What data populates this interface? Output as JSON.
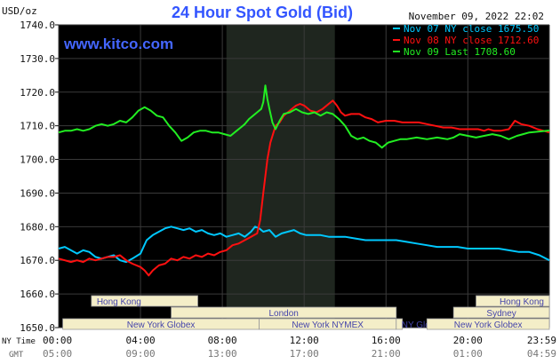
{
  "chart_data": {
    "type": "line",
    "title": "24 Hour Spot Gold (Bid)",
    "subtitle": "November 09, 2022 22:02",
    "watermark": "www.kitco.com",
    "ylabel": "USD/oz",
    "ylim": [
      1650,
      1740
    ],
    "y_ticks": [
      "1650.0",
      "1660.0",
      "1670.0",
      "1680.0",
      "1690.0",
      "1700.0",
      "1710.0",
      "1720.0",
      "1730.0",
      "1740.0"
    ],
    "x_tick_labels": [
      "00:00",
      "04:00",
      "08:00",
      "12:00",
      "16:00",
      "20:00",
      "23:59"
    ],
    "x_tick_hours": [
      0,
      4,
      8,
      12,
      16,
      20,
      23.983
    ],
    "x_secondary_tick_labels": [
      "05:00",
      "09:00",
      "13:00",
      "17:00",
      "21:00",
      "01:00",
      "04:59"
    ],
    "x_axis_label_primary": "NY Time",
    "x_axis_label_secondary": "GMT",
    "xlim": [
      0,
      23.983
    ],
    "grid": true,
    "legend_position": "top-right",
    "highlight_band_hours": [
      8.2,
      13.5
    ],
    "colors": {
      "background": "#000000",
      "grid": "#3a3a3a",
      "band": "#1f261f",
      "title": "#3355ff",
      "watermark": "#4466ff",
      "nov07": "#00c8ff",
      "nov08": "#ff1010",
      "nov09": "#22ee22",
      "session_fill": "#f4eec8",
      "session_text": "#4444aa"
    },
    "sessions": [
      {
        "label": "Hong Kong",
        "start": 1.6,
        "end": 6.8,
        "row": 1,
        "align": "start"
      },
      {
        "label": "London",
        "start": 5.5,
        "end": 16.5,
        "row": 2,
        "align": "middle"
      },
      {
        "label": "New York Globex",
        "start": 0.2,
        "end": 9.8,
        "row": 3,
        "align": "middle"
      },
      {
        "label": "New York NYMEX",
        "start": 9.8,
        "end": 16.5,
        "row": 3,
        "align": "middle"
      },
      {
        "label": "NY Globex",
        "start": 16.5,
        "end": 16.8,
        "row": 3,
        "align": "start"
      },
      {
        "label": "Hong Kong",
        "start": 20.4,
        "end": 23.983,
        "row": 1,
        "align": "end"
      },
      {
        "label": "Sydney",
        "start": 19.3,
        "end": 23.983,
        "row": 2,
        "align": "middle"
      },
      {
        "label": "New York Globex",
        "start": 18.0,
        "end": 23.983,
        "row": 3,
        "align": "middle"
      }
    ],
    "series": [
      {
        "name": "Nov 07 NY close 1675.50",
        "color_key": "nov07",
        "points": [
          [
            0,
            1673.5
          ],
          [
            0.3,
            1674
          ],
          [
            0.6,
            1673
          ],
          [
            0.9,
            1672
          ],
          [
            1.2,
            1673
          ],
          [
            1.5,
            1672.5
          ],
          [
            1.8,
            1671
          ],
          [
            2.1,
            1670.5
          ],
          [
            2.4,
            1671
          ],
          [
            2.7,
            1671.5
          ],
          [
            3.0,
            1670
          ],
          [
            3.3,
            1669.5
          ],
          [
            3.6,
            1670.5
          ],
          [
            4.0,
            1672
          ],
          [
            4.3,
            1676
          ],
          [
            4.6,
            1677.5
          ],
          [
            4.9,
            1678.5
          ],
          [
            5.2,
            1679.5
          ],
          [
            5.5,
            1680
          ],
          [
            5.8,
            1679.5
          ],
          [
            6.1,
            1679
          ],
          [
            6.4,
            1679.5
          ],
          [
            6.7,
            1678.5
          ],
          [
            7.0,
            1679
          ],
          [
            7.3,
            1678
          ],
          [
            7.6,
            1677.5
          ],
          [
            7.9,
            1678
          ],
          [
            8.2,
            1677
          ],
          [
            8.5,
            1677.5
          ],
          [
            8.8,
            1678
          ],
          [
            9.1,
            1677
          ],
          [
            9.4,
            1678.5
          ],
          [
            9.6,
            1680
          ],
          [
            9.8,
            1679.5
          ],
          [
            10.0,
            1678.5
          ],
          [
            10.3,
            1679
          ],
          [
            10.6,
            1677
          ],
          [
            10.9,
            1678
          ],
          [
            11.2,
            1678.5
          ],
          [
            11.5,
            1679
          ],
          [
            11.8,
            1678
          ],
          [
            12.1,
            1677.5
          ],
          [
            12.4,
            1677.5
          ],
          [
            12.8,
            1677.5
          ],
          [
            13.2,
            1677
          ],
          [
            13.6,
            1677
          ],
          [
            14.0,
            1677
          ],
          [
            14.5,
            1676.5
          ],
          [
            15.0,
            1676
          ],
          [
            15.5,
            1676
          ],
          [
            16.0,
            1676
          ],
          [
            16.5,
            1676
          ],
          [
            17.0,
            1675.5
          ],
          [
            17.5,
            1675
          ],
          [
            18.0,
            1674.5
          ],
          [
            18.5,
            1674
          ],
          [
            19.0,
            1674
          ],
          [
            19.5,
            1674
          ],
          [
            20.0,
            1673.5
          ],
          [
            20.5,
            1673.5
          ],
          [
            21.0,
            1673.5
          ],
          [
            21.5,
            1673.5
          ],
          [
            22.0,
            1673
          ],
          [
            22.5,
            1672.5
          ],
          [
            23.0,
            1672.5
          ],
          [
            23.5,
            1671.5
          ],
          [
            23.983,
            1670
          ]
        ]
      },
      {
        "name": "Nov 08 NY close 1712.60",
        "color_key": "nov08",
        "points": [
          [
            0,
            1670.5
          ],
          [
            0.3,
            1670
          ],
          [
            0.6,
            1669.5
          ],
          [
            0.9,
            1670
          ],
          [
            1.2,
            1669.5
          ],
          [
            1.5,
            1670.5
          ],
          [
            1.8,
            1670
          ],
          [
            2.1,
            1670.5
          ],
          [
            2.4,
            1671
          ],
          [
            2.7,
            1671
          ],
          [
            3.0,
            1671.5
          ],
          [
            3.3,
            1670
          ],
          [
            3.6,
            1669
          ],
          [
            4.0,
            1668
          ],
          [
            4.2,
            1667
          ],
          [
            4.4,
            1665.5
          ],
          [
            4.6,
            1667
          ],
          [
            4.9,
            1668.5
          ],
          [
            5.2,
            1669
          ],
          [
            5.5,
            1670.5
          ],
          [
            5.8,
            1670
          ],
          [
            6.1,
            1671
          ],
          [
            6.4,
            1670.5
          ],
          [
            6.7,
            1671.5
          ],
          [
            7.0,
            1671
          ],
          [
            7.3,
            1672
          ],
          [
            7.6,
            1671.5
          ],
          [
            7.9,
            1672.5
          ],
          [
            8.2,
            1673
          ],
          [
            8.5,
            1674.5
          ],
          [
            8.8,
            1675
          ],
          [
            9.1,
            1676
          ],
          [
            9.4,
            1677
          ],
          [
            9.7,
            1678
          ],
          [
            9.85,
            1682
          ],
          [
            10.0,
            1690
          ],
          [
            10.1,
            1695
          ],
          [
            10.2,
            1700
          ],
          [
            10.35,
            1705
          ],
          [
            10.5,
            1708
          ],
          [
            10.6,
            1710
          ],
          [
            10.8,
            1711
          ],
          [
            11.0,
            1713
          ],
          [
            11.2,
            1714
          ],
          [
            11.4,
            1715
          ],
          [
            11.6,
            1716
          ],
          [
            11.8,
            1716.5
          ],
          [
            12.0,
            1716
          ],
          [
            12.3,
            1714.5
          ],
          [
            12.6,
            1714
          ],
          [
            12.9,
            1715
          ],
          [
            13.2,
            1716.5
          ],
          [
            13.4,
            1717.5
          ],
          [
            13.6,
            1716
          ],
          [
            13.8,
            1714
          ],
          [
            14.0,
            1713
          ],
          [
            14.3,
            1713.5
          ],
          [
            14.7,
            1713.5
          ],
          [
            15.0,
            1712.5
          ],
          [
            15.3,
            1712
          ],
          [
            15.6,
            1711
          ],
          [
            16.0,
            1711.5
          ],
          [
            16.4,
            1711.5
          ],
          [
            16.8,
            1711
          ],
          [
            17.2,
            1711
          ],
          [
            17.6,
            1711
          ],
          [
            18.0,
            1710.5
          ],
          [
            18.4,
            1710
          ],
          [
            18.8,
            1709.5
          ],
          [
            19.2,
            1709.5
          ],
          [
            19.6,
            1709
          ],
          [
            20.0,
            1709
          ],
          [
            20.5,
            1709
          ],
          [
            20.8,
            1708.5
          ],
          [
            21.0,
            1709
          ],
          [
            21.3,
            1708.5
          ],
          [
            21.6,
            1708.5
          ],
          [
            22.0,
            1709
          ],
          [
            22.3,
            1711.5
          ],
          [
            22.6,
            1710.5
          ],
          [
            23.0,
            1710
          ],
          [
            23.4,
            1709
          ],
          [
            23.7,
            1708.5
          ],
          [
            23.983,
            1708
          ]
        ]
      },
      {
        "name": "Nov 09 Last 1708.60",
        "color_key": "nov09",
        "points": [
          [
            0,
            1708
          ],
          [
            0.3,
            1708.5
          ],
          [
            0.6,
            1708.5
          ],
          [
            0.9,
            1709
          ],
          [
            1.2,
            1708.5
          ],
          [
            1.5,
            1709
          ],
          [
            1.8,
            1710
          ],
          [
            2.1,
            1710.5
          ],
          [
            2.4,
            1710
          ],
          [
            2.7,
            1710.5
          ],
          [
            3.0,
            1711.5
          ],
          [
            3.3,
            1711
          ],
          [
            3.6,
            1712.5
          ],
          [
            3.9,
            1714.5
          ],
          [
            4.2,
            1715.5
          ],
          [
            4.5,
            1714.5
          ],
          [
            4.8,
            1713
          ],
          [
            5.1,
            1712.5
          ],
          [
            5.4,
            1710
          ],
          [
            5.7,
            1708
          ],
          [
            6.0,
            1705.5
          ],
          [
            6.3,
            1706.5
          ],
          [
            6.6,
            1708
          ],
          [
            6.9,
            1708.5
          ],
          [
            7.2,
            1708.5
          ],
          [
            7.5,
            1708
          ],
          [
            7.8,
            1708
          ],
          [
            8.1,
            1707.5
          ],
          [
            8.4,
            1707
          ],
          [
            8.7,
            1708.5
          ],
          [
            8.9,
            1709.5
          ],
          [
            9.1,
            1710.5
          ],
          [
            9.3,
            1712
          ],
          [
            9.5,
            1713
          ],
          [
            9.7,
            1714
          ],
          [
            9.9,
            1715
          ],
          [
            10.0,
            1717
          ],
          [
            10.1,
            1722
          ],
          [
            10.2,
            1718
          ],
          [
            10.3,
            1715
          ],
          [
            10.45,
            1711
          ],
          [
            10.6,
            1709
          ],
          [
            10.8,
            1711.5
          ],
          [
            11.0,
            1713.5
          ],
          [
            11.3,
            1714
          ],
          [
            11.6,
            1715
          ],
          [
            11.9,
            1714
          ],
          [
            12.2,
            1713.5
          ],
          [
            12.5,
            1714
          ],
          [
            12.8,
            1713
          ],
          [
            13.1,
            1714
          ],
          [
            13.4,
            1713.5
          ],
          [
            13.7,
            1712
          ],
          [
            14.0,
            1710
          ],
          [
            14.3,
            1707
          ],
          [
            14.6,
            1706
          ],
          [
            14.9,
            1706.5
          ],
          [
            15.2,
            1705.5
          ],
          [
            15.5,
            1705
          ],
          [
            15.8,
            1703.5
          ],
          [
            16.1,
            1705
          ],
          [
            16.4,
            1705.5
          ],
          [
            16.7,
            1706
          ],
          [
            17.0,
            1706
          ],
          [
            17.5,
            1706.5
          ],
          [
            18.0,
            1706
          ],
          [
            18.5,
            1706.5
          ],
          [
            19.0,
            1706
          ],
          [
            19.3,
            1706.5
          ],
          [
            19.6,
            1707.5
          ],
          [
            20.0,
            1707
          ],
          [
            20.4,
            1706.5
          ],
          [
            20.8,
            1707
          ],
          [
            21.2,
            1707.5
          ],
          [
            21.6,
            1707
          ],
          [
            22.0,
            1706
          ],
          [
            22.4,
            1707
          ],
          [
            22.7,
            1707.5
          ],
          [
            23.0,
            1708
          ],
          [
            23.983,
            1708.6
          ]
        ]
      }
    ]
  }
}
